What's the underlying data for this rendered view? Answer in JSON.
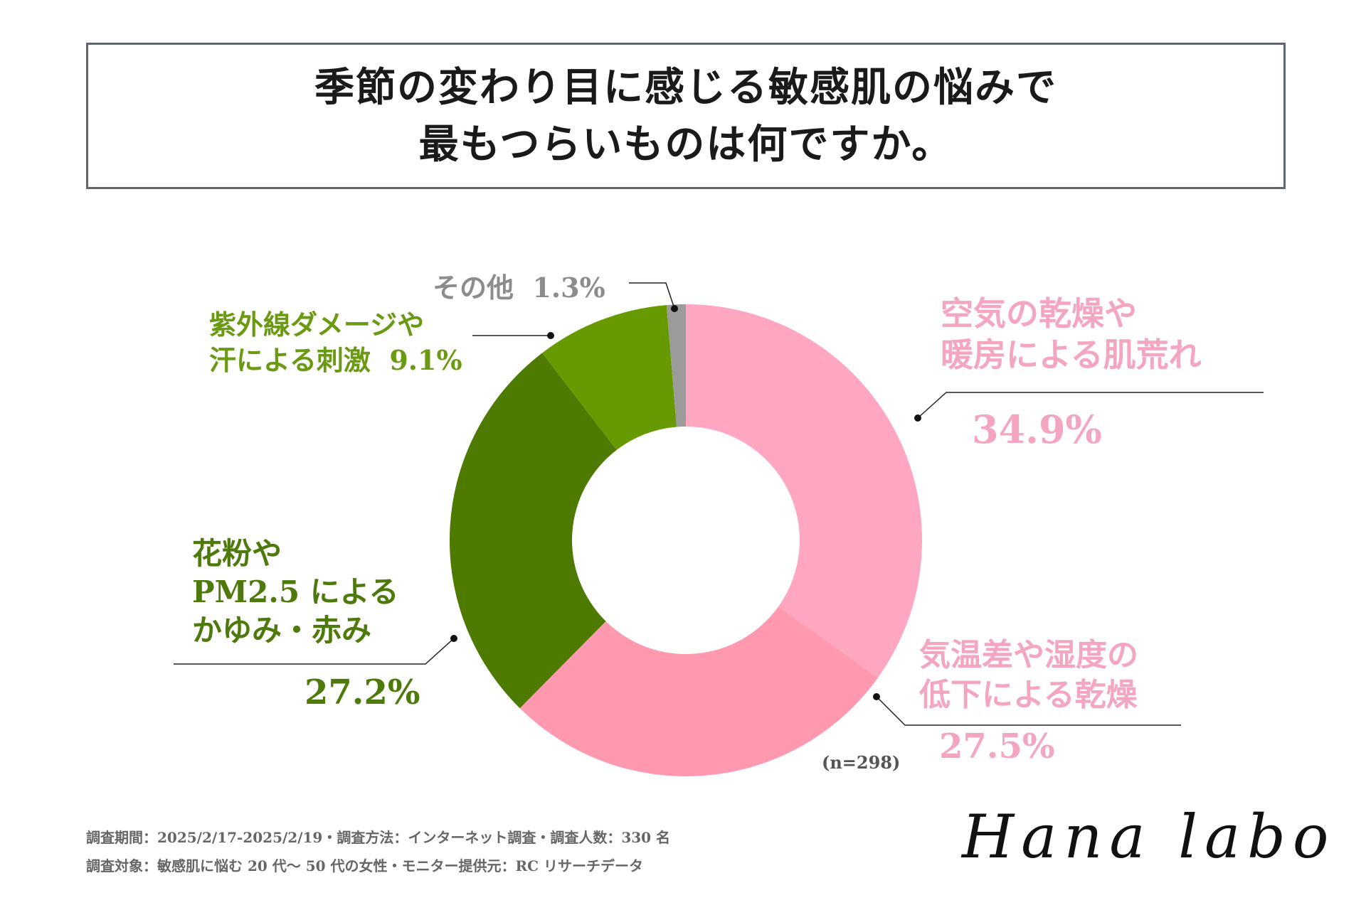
{
  "title": {
    "line1": "季節の変わり目に感じる敏感肌の悩みで",
    "line2": "最もつらいものは何ですか。"
  },
  "chart_data": {
    "type": "pie",
    "variant": "donut",
    "sample_note": "(n=298)",
    "slices": [
      {
        "label_lines": [
          "空気の乾燥や",
          "暖房による肌荒れ"
        ],
        "value": 34.9,
        "value_text": "34.9%",
        "color": "#ffa6c1"
      },
      {
        "label_lines": [
          "気温差や湿度の",
          "低下による乾燥"
        ],
        "value": 27.5,
        "value_text": "27.5%",
        "color": "#ff99b0"
      },
      {
        "label_lines": [
          "花粉や",
          "PM2.5 による",
          "かゆみ・赤み"
        ],
        "value": 27.2,
        "value_text": "27.2%",
        "color": "#4e7a02"
      },
      {
        "label_lines": [
          "紫外線ダメージや",
          "汗による刺激"
        ],
        "value": 9.1,
        "value_text": "9.1%",
        "color": "#669a00"
      },
      {
        "label_lines": [
          "その他"
        ],
        "value": 1.3,
        "value_text": "1.3%",
        "color": "#9b9b9b"
      }
    ]
  },
  "footer": {
    "line1": "調査期間：2025/2/17-2025/2/19・調査方法：インターネット調査・調査人数：330 名",
    "line2": "調査対象：敏感肌に悩む 20 代〜 50 代の女性・モニター提供元：RC リサーチデータ"
  },
  "brand": "Hana labo"
}
